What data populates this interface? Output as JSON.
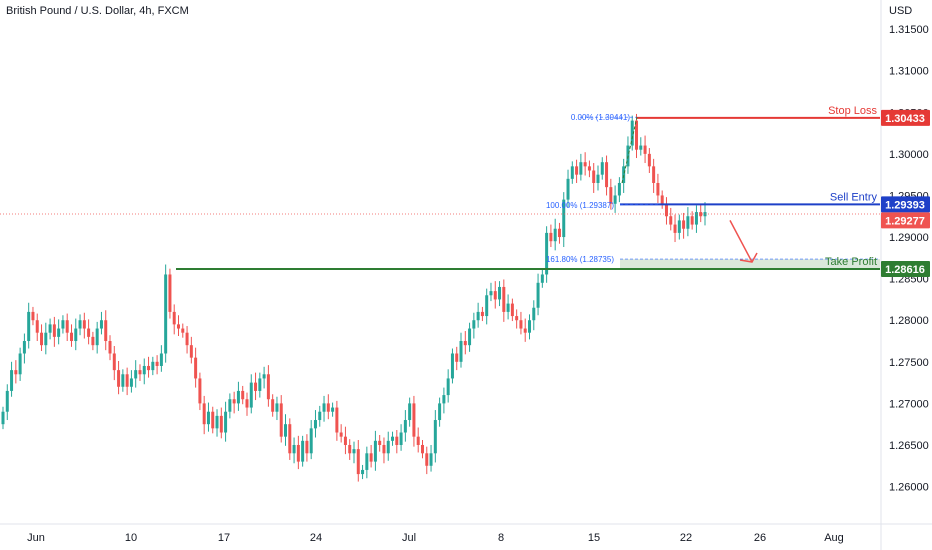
{
  "header": {
    "title": "British Pound / U.S. Dollar, 4h, FXCM",
    "currency": "USD"
  },
  "colors": {
    "up": "#26a69a",
    "down": "#ef5350",
    "stop": "#e53935",
    "entry": "#1e40c8",
    "take_profit": "#2e7d32",
    "arrow": "#ef5350"
  },
  "chart_data": {
    "type": "candlestick",
    "symbol": "GBPUSD",
    "timeframe": "4h",
    "y_ticks": [
      "1.31500",
      "1.31000",
      "1.30500",
      "1.30000",
      "1.29500",
      "1.29000",
      "1.28500",
      "1.28000",
      "1.27500",
      "1.27000",
      "1.26500",
      "1.26000"
    ],
    "x_ticks": [
      "Jun",
      "10",
      "17",
      "24",
      "Jul",
      "8",
      "15",
      "22",
      "26",
      "Aug"
    ],
    "ylim": [
      1.2555,
      1.3185
    ],
    "last_price": {
      "value": 1.29277,
      "label": "1.29277"
    },
    "levels": {
      "stop_loss": {
        "label": "Stop Loss",
        "value": 1.30433,
        "price_label": "1.30433"
      },
      "sell_entry": {
        "label": "Sell Entry",
        "value": 1.29393,
        "price_label": "1.29393"
      },
      "take_profit": {
        "label": "Take Profit",
        "value": 1.28616,
        "price_label": "1.28616"
      }
    },
    "fibonacci": [
      {
        "label": "0.00% (1.30441)",
        "value": 1.30441
      },
      {
        "label": "100.00% (1.29387)",
        "value": 1.29387
      },
      {
        "label": "161.80% (1.28735)",
        "value": 1.28735
      }
    ],
    "closes": [
      1.269,
      1.2715,
      1.274,
      1.2735,
      1.276,
      1.2775,
      1.281,
      1.28,
      1.2785,
      1.277,
      1.2785,
      1.2795,
      1.278,
      1.279,
      1.28,
      1.2785,
      1.2775,
      1.279,
      1.28,
      1.279,
      1.278,
      1.277,
      1.279,
      1.28,
      1.2775,
      1.276,
      1.274,
      1.272,
      1.2735,
      1.272,
      1.273,
      1.274,
      1.2735,
      1.2745,
      1.274,
      1.275,
      1.2745,
      1.276,
      1.2855,
      1.281,
      1.2795,
      1.279,
      1.2785,
      1.277,
      1.2755,
      1.273,
      1.27,
      1.2675,
      1.269,
      1.267,
      1.2685,
      1.2665,
      1.269,
      1.2705,
      1.27,
      1.2715,
      1.2705,
      1.2695,
      1.2725,
      1.2715,
      1.273,
      1.2735,
      1.2705,
      1.269,
      1.27,
      1.266,
      1.2675,
      1.264,
      1.265,
      1.263,
      1.2655,
      1.264,
      1.267,
      1.268,
      1.269,
      1.27,
      1.269,
      1.2695,
      1.2665,
      1.266,
      1.265,
      1.264,
      1.2645,
      1.2615,
      1.262,
      1.264,
      1.263,
      1.2655,
      1.265,
      1.264,
      1.2655,
      1.266,
      1.265,
      1.2665,
      1.268,
      1.27,
      1.266,
      1.265,
      1.264,
      1.2625,
      1.264,
      1.268,
      1.27,
      1.271,
      1.273,
      1.276,
      1.275,
      1.2775,
      1.277,
      1.279,
      1.28,
      1.281,
      1.2805,
      1.283,
      1.2835,
      1.2825,
      1.284,
      1.281,
      1.282,
      1.2805,
      1.28,
      1.279,
      1.2785,
      1.28,
      1.2815,
      1.2845,
      1.2855,
      1.2905,
      1.2895,
      1.291,
      1.29,
      1.2945,
      1.297,
      1.2985,
      1.2975,
      1.299,
      1.2985,
      1.298,
      1.2965,
      1.2975,
      1.299,
      1.296,
      1.294,
      1.295,
      1.2965,
      1.2985,
      1.301,
      1.304,
      1.3005,
      1.301,
      1.3,
      1.2985,
      1.2965,
      1.295,
      1.294,
      1.2925,
      1.2915,
      1.2905,
      1.292,
      1.291,
      1.2925,
      1.2915,
      1.293,
      1.2925,
      1.293
    ]
  }
}
